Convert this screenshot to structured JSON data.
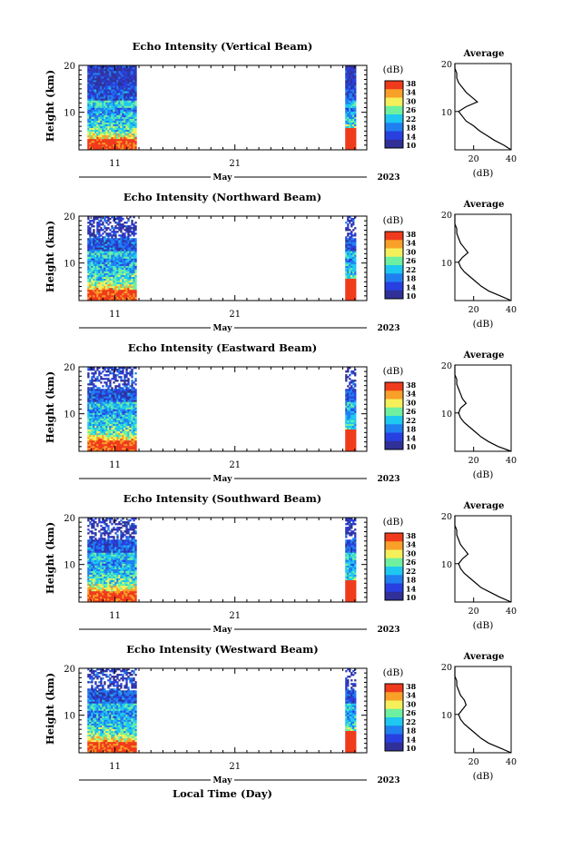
{
  "panel_titles": [
    "Echo Intensity (Vertical Beam)",
    "Echo Intensity (Northward Beam)",
    "Echo Intensity (Eastward Beam)",
    "Echo Intensity (Southward Beam)",
    "Echo Intensity (Westward Beam)"
  ],
  "average_title": "Average",
  "colorbar_unit": "(dB)",
  "colorbar_ticks": [
    "38",
    "34",
    "30",
    "26",
    "22",
    "18",
    "14",
    "10"
  ],
  "colorbar_colors": [
    "#f03a1c",
    "#f8a028",
    "#f5f05a",
    "#6ef0a0",
    "#1ec8f0",
    "#2080f0",
    "#2840e0",
    "#303098"
  ],
  "ylabel": "Height (km)",
  "y_ticks": [
    "20",
    "10"
  ],
  "x_ticks": [
    "11",
    "21"
  ],
  "month_label": "May",
  "year_label": "2023",
  "avg_x_ticks": [
    "20",
    "40"
  ],
  "avg_xlabel": "(dB)",
  "xlabel": "Local Time (Day)",
  "chart_data": [
    {
      "type": "heatmap",
      "title": "Echo Intensity (Vertical Beam)",
      "ylabel": "Height (km)",
      "ylim": [
        2,
        20
      ],
      "x_range_days": [
        8,
        32
      ],
      "data_segments_days": [
        [
          8.7,
          12.8
        ],
        [
          30.2,
          31.1
        ]
      ],
      "colorbar_range_db": [
        10,
        38
      ],
      "profile": {
        "xlim": [
          10,
          40
        ],
        "heights_km": [
          2,
          3,
          4,
          5,
          6,
          7,
          8,
          9,
          10,
          11,
          12,
          13,
          14,
          15,
          16,
          17,
          18,
          19,
          20
        ],
        "values_db": [
          40,
          36,
          31,
          27,
          23,
          20,
          16,
          14,
          12,
          16,
          22,
          19,
          16,
          14,
          12,
          11,
          11,
          10,
          10
        ]
      }
    },
    {
      "type": "heatmap",
      "title": "Echo Intensity (Northward Beam)",
      "ylabel": "Height (km)",
      "ylim": [
        2,
        20
      ],
      "x_range_days": [
        8,
        32
      ],
      "data_segments_days": [
        [
          8.7,
          12.8
        ],
        [
          30.2,
          31.1
        ]
      ],
      "colorbar_range_db": [
        10,
        38
      ],
      "profile": {
        "xlim": [
          10,
          40
        ],
        "heights_km": [
          2,
          3,
          4,
          5,
          6,
          7,
          8,
          9,
          10,
          11,
          12,
          13,
          14,
          15,
          16,
          17,
          18,
          19,
          20
        ],
        "values_db": [
          40,
          34,
          28,
          24,
          21,
          18,
          15,
          13,
          12,
          14,
          17,
          15,
          13,
          12,
          11,
          11,
          10,
          10,
          10
        ]
      }
    },
    {
      "type": "heatmap",
      "title": "Echo Intensity (Eastward Beam)",
      "ylabel": "Height (km)",
      "ylim": [
        2,
        20
      ],
      "x_range_days": [
        8,
        32
      ],
      "data_segments_days": [
        [
          8.7,
          12.8
        ],
        [
          30.2,
          31.1
        ]
      ],
      "colorbar_range_db": [
        10,
        38
      ],
      "profile": {
        "xlim": [
          10,
          40
        ],
        "heights_km": [
          2,
          3,
          4,
          5,
          6,
          7,
          8,
          9,
          10,
          11,
          12,
          13,
          14,
          15,
          16,
          17,
          18,
          19,
          20
        ],
        "values_db": [
          40,
          33,
          28,
          24,
          21,
          18,
          15,
          13,
          12,
          13,
          16,
          14,
          13,
          12,
          11,
          11,
          10,
          10,
          10
        ]
      }
    },
    {
      "type": "heatmap",
      "title": "Echo Intensity (Southward Beam)",
      "ylabel": "Height (km)",
      "ylim": [
        2,
        20
      ],
      "x_range_days": [
        8,
        32
      ],
      "data_segments_days": [
        [
          8.7,
          12.8
        ],
        [
          30.2,
          31.1
        ]
      ],
      "colorbar_range_db": [
        10,
        38
      ],
      "profile": {
        "xlim": [
          10,
          40
        ],
        "heights_km": [
          2,
          3,
          4,
          5,
          6,
          7,
          8,
          9,
          10,
          11,
          12,
          13,
          14,
          15,
          16,
          17,
          18,
          19,
          20
        ],
        "values_db": [
          40,
          34,
          29,
          24,
          21,
          18,
          15,
          13,
          12,
          14,
          17,
          15,
          13,
          12,
          11,
          11,
          10,
          10,
          10
        ]
      }
    },
    {
      "type": "heatmap",
      "title": "Echo Intensity (Westward Beam)",
      "ylabel": "Height (km)",
      "ylim": [
        2,
        20
      ],
      "x_range_days": [
        8,
        32
      ],
      "data_segments_days": [
        [
          8.7,
          12.8
        ],
        [
          30.2,
          31.1
        ]
      ],
      "colorbar_range_db": [
        10,
        38
      ],
      "profile": {
        "xlim": [
          10,
          40
        ],
        "heights_km": [
          2,
          3,
          4,
          5,
          6,
          7,
          8,
          9,
          10,
          11,
          12,
          13,
          14,
          15,
          16,
          17,
          18,
          19,
          20
        ],
        "values_db": [
          40,
          34,
          28,
          24,
          21,
          18,
          15,
          13,
          12,
          14,
          16,
          15,
          13,
          12,
          11,
          11,
          10,
          10,
          10
        ]
      }
    }
  ]
}
